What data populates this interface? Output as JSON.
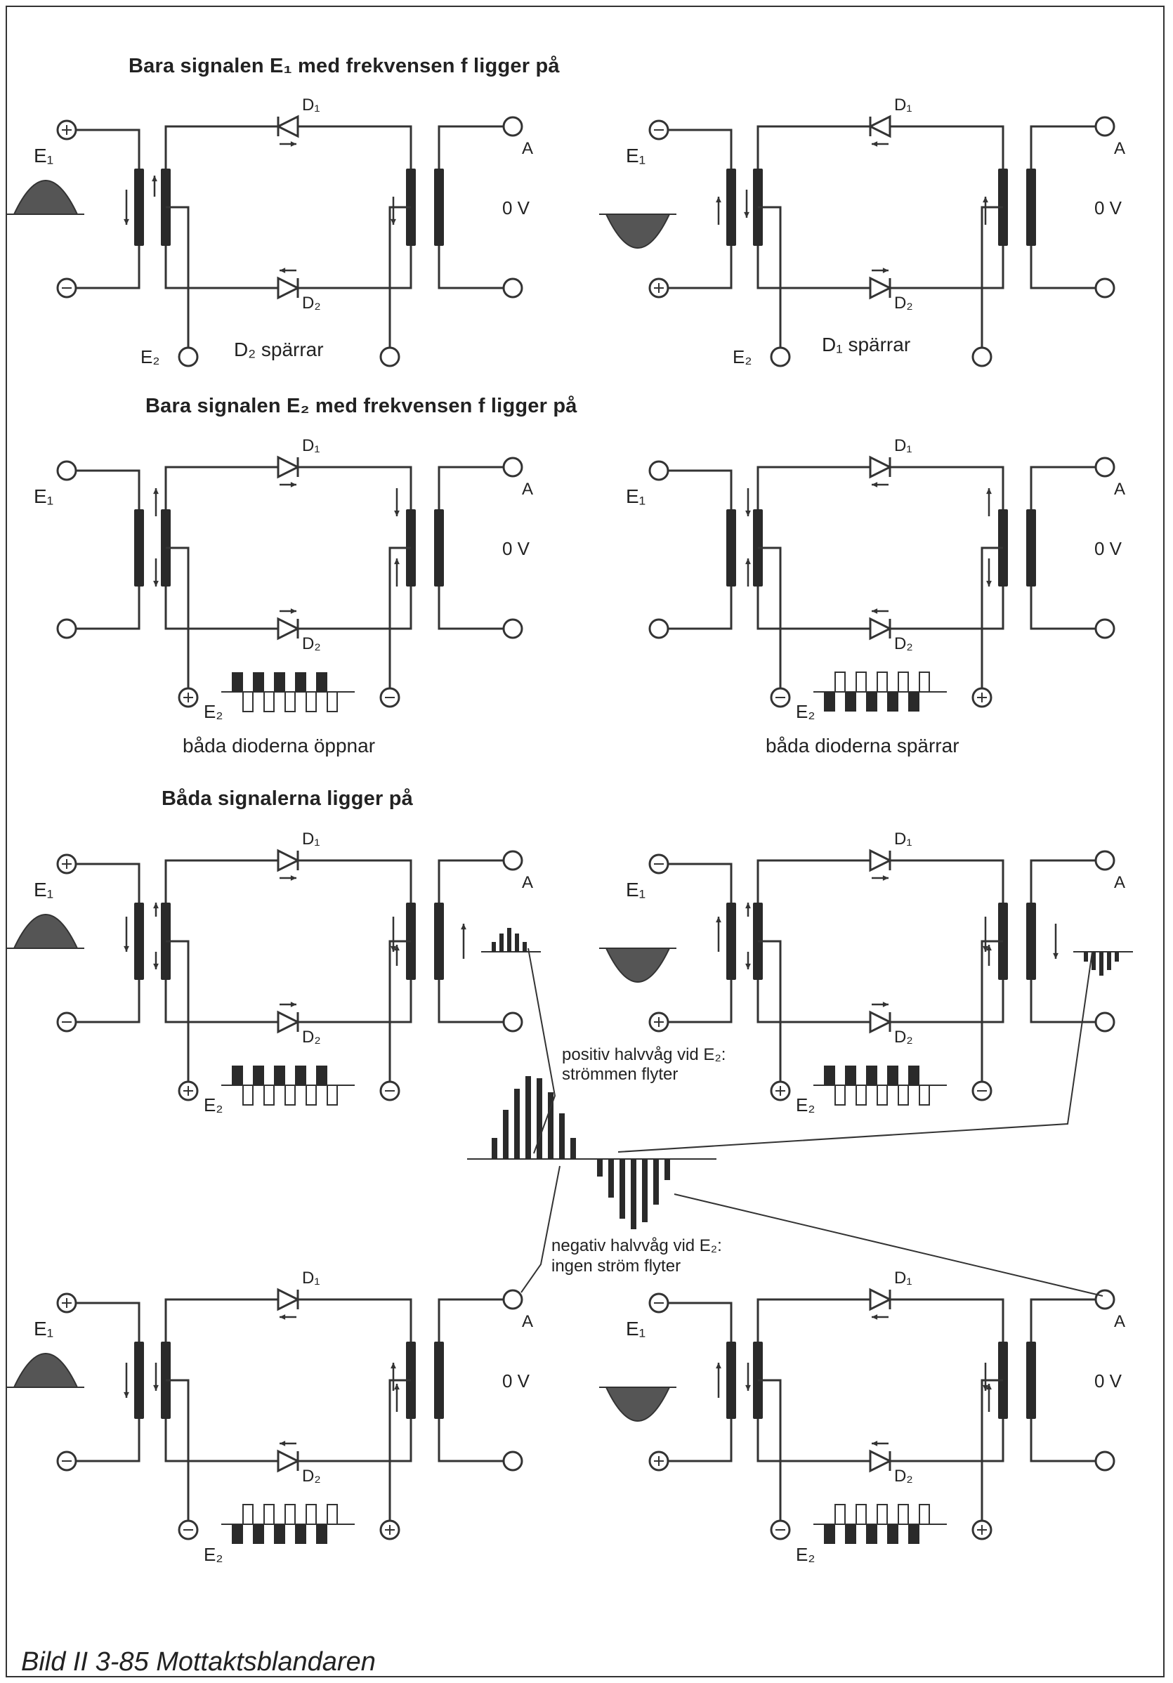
{
  "sections": {
    "only_e1": "Bara signalen  E₁  med frekvensen  f  ligger på",
    "only_e2": "Bara signalen  E₂  med frekvensen  f  ligger på",
    "both": "Båda signalerna ligger på"
  },
  "labels": {
    "e1": "E₁",
    "e2": "E₂",
    "d1": "D₁",
    "d2": "D₂",
    "a": "A",
    "zero_v": "0 V",
    "plus": "+",
    "minus": "−"
  },
  "notes": {
    "d2_blocks": "D₂ spärrar",
    "d1_blocks": "D₁ spärrar",
    "both_open": "båda dioderna öppnar",
    "both_block": "båda dioderna spärrar",
    "positive_half_1": "positiv halvvåg vid E₂:",
    "positive_half_2": "strömmen flyter",
    "negative_half_1": "negativ halvvåg vid E₂:",
    "negative_half_2": "ingen ström flyter"
  },
  "caption": "Bild II 3-85  Mottaktsblandaren"
}
